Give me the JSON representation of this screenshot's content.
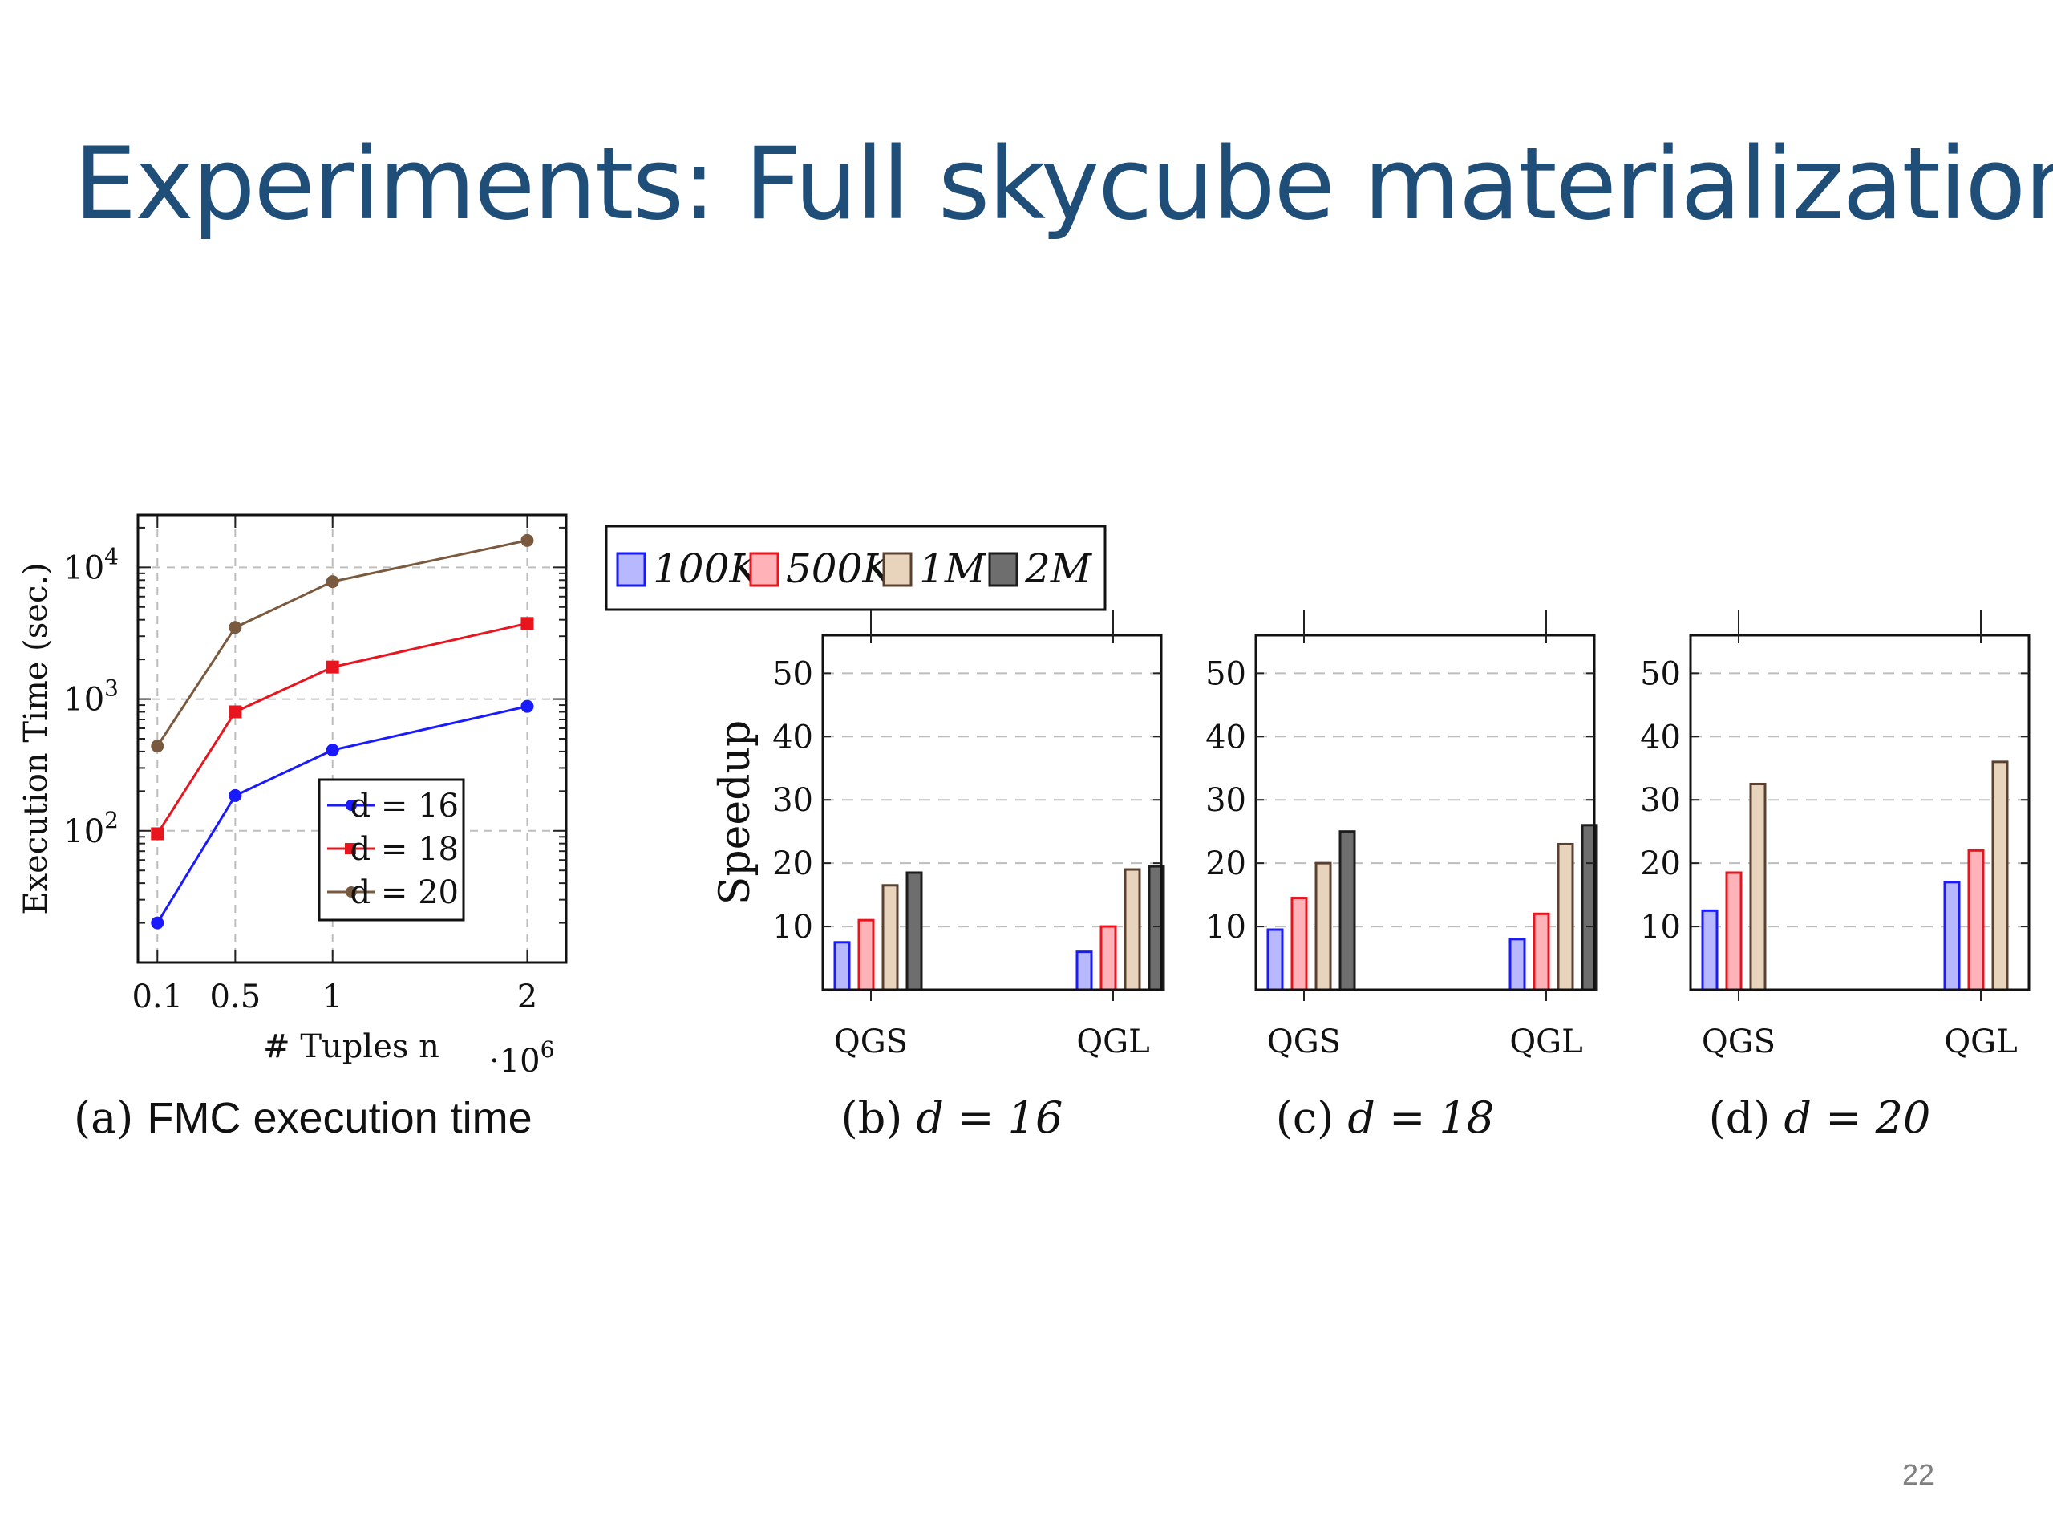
{
  "slide": {
    "title": "Experiments: Full skycube materialization",
    "page_number": "22"
  },
  "colors": {
    "title": "#1F4E79",
    "blue": "#1a1aff",
    "red": "#e8141e",
    "brown": "#7a5a3f",
    "bar_fills": [
      "#b8b8ff",
      "#ffb3b8",
      "#e8d3bd",
      "#6e6e6e"
    ],
    "bar_strokes": [
      "#1a1aff",
      "#e8141e",
      "#5a4030",
      "#1c1c1c"
    ]
  },
  "chart_data": [
    {
      "id": "a",
      "type": "line",
      "caption_prefix": "(a) ",
      "caption_main": "FMC execution time",
      "xlabel": "# Tuples n",
      "x_multiplier": "·10",
      "x_multiplier_exp": "6",
      "ylabel": "Execution Time (sec.)",
      "yscale": "log",
      "xlim": [
        0,
        2.2
      ],
      "ylim": [
        10,
        25000
      ],
      "grid": true,
      "x_ticks": [
        0.1,
        0.5,
        1,
        2
      ],
      "x_tick_labels": [
        "0.1",
        "0.5",
        "1",
        "2"
      ],
      "y_ticks": [
        100,
        1000,
        10000
      ],
      "y_tick_base": "10",
      "y_tick_exps": [
        "2",
        "3",
        "4"
      ],
      "legend_position": "lower-right",
      "series": [
        {
          "name": "d = 16",
          "x": [
            0.1,
            0.5,
            1,
            2
          ],
          "y": [
            20,
            185,
            410,
            880
          ],
          "marker": "circle"
        },
        {
          "name": "d = 18",
          "x": [
            0.1,
            0.5,
            1,
            2
          ],
          "y": [
            95,
            800,
            1750,
            3750
          ],
          "marker": "square"
        },
        {
          "name": "d = 20",
          "x": [
            0.1,
            0.5,
            1,
            2
          ],
          "y": [
            440,
            3500,
            7800,
            16000
          ],
          "marker": "circle"
        }
      ]
    },
    {
      "id": "bcd",
      "type": "bar",
      "ylabel": "Speedup",
      "ylim": [
        0,
        56
      ],
      "y_ticks": [
        10,
        20,
        30,
        40,
        50
      ],
      "grid": "horizontal dashed",
      "legend_position": "top-left",
      "series_names": [
        "100K",
        "500K",
        "1M",
        "2M"
      ],
      "categories": [
        "QGS",
        "QGL"
      ],
      "panels": [
        {
          "caption_prefix": "(b) ",
          "caption_math": "d = 16",
          "series": [
            {
              "name": "100K",
              "values": [
                7.5,
                6
              ]
            },
            {
              "name": "500K",
              "values": [
                11,
                10
              ]
            },
            {
              "name": "1M",
              "values": [
                16.5,
                19
              ]
            },
            {
              "name": "2M",
              "values": [
                18.5,
                19.5
              ]
            }
          ]
        },
        {
          "caption_prefix": "(c) ",
          "caption_math": "d = 18",
          "series": [
            {
              "name": "100K",
              "values": [
                9.5,
                8
              ]
            },
            {
              "name": "500K",
              "values": [
                14.5,
                12
              ]
            },
            {
              "name": "1M",
              "values": [
                20,
                23
              ]
            },
            {
              "name": "2M",
              "values": [
                25,
                26
              ]
            }
          ]
        },
        {
          "caption_prefix": "(d) ",
          "caption_math": "d = 20",
          "series": [
            {
              "name": "100K",
              "values": [
                12.5,
                17
              ]
            },
            {
              "name": "500K",
              "values": [
                18.5,
                22
              ]
            },
            {
              "name": "1M",
              "values": [
                32.5,
                36
              ]
            }
          ]
        }
      ]
    }
  ]
}
